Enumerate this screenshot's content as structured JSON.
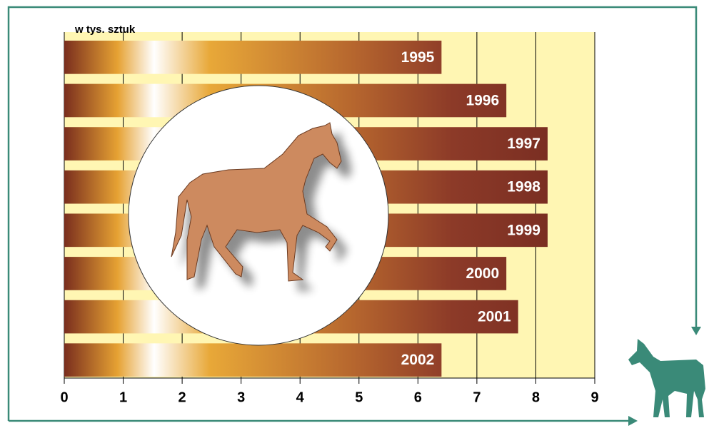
{
  "chart_data": {
    "type": "bar",
    "orientation": "horizontal",
    "unit_label": "w tys. sztuk",
    "categories": [
      "1995",
      "1996",
      "1997",
      "1998",
      "1999",
      "2000",
      "2001",
      "2002"
    ],
    "values": [
      6.4,
      7.5,
      8.2,
      8.2,
      8.2,
      7.5,
      7.7,
      6.4
    ],
    "xlim": [
      0,
      9
    ],
    "xticks": [
      0,
      1,
      2,
      3,
      4,
      5,
      6,
      7,
      8,
      9
    ],
    "grid": true
  }
}
